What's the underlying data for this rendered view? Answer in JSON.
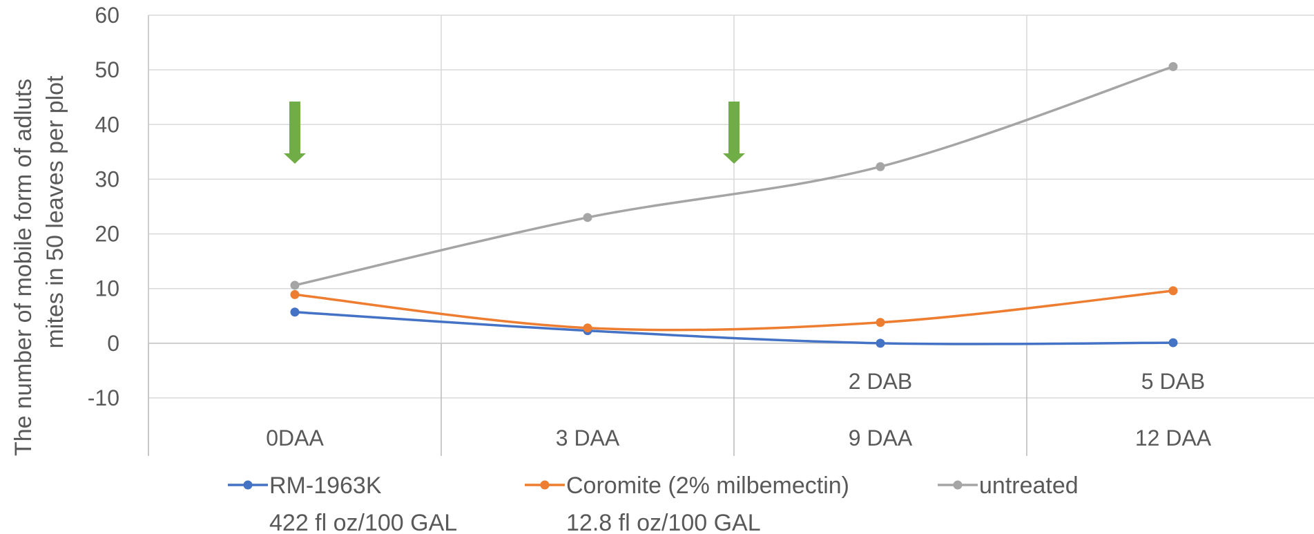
{
  "chart_data": {
    "type": "line",
    "ylabel_lines": [
      "The number of mobile form of adluts",
      "mites in 50 leaves per plot"
    ],
    "ylim": [
      -10,
      60
    ],
    "yticks": [
      -10,
      0,
      10,
      20,
      30,
      40,
      50,
      60
    ],
    "categories": [
      "0DAA",
      "3 DAA",
      "9 DAA",
      "12 DAA"
    ],
    "secondary_labels": [
      "",
      "",
      "2 DAB",
      "5 DAB"
    ],
    "grid": true,
    "smooth": true,
    "series": [
      {
        "name": "RM-1963K",
        "sub": "422 fl oz/100 GAL",
        "color": "#4472c4",
        "values": [
          5.7,
          2.3,
          0.0,
          0.1
        ]
      },
      {
        "name": "Coromite (2% milbemectin)",
        "sub": "12.8 fl oz/100 GAL",
        "color": "#ed7d31",
        "values": [
          8.9,
          2.8,
          3.8,
          9.6
        ]
      },
      {
        "name": "untreated",
        "sub": "",
        "color": "#a5a5a5",
        "values": [
          10.6,
          23.0,
          32.3,
          50.6
        ]
      }
    ],
    "arrow_color": "#70ad47",
    "arrows_at_category_positions": [
      0,
      1.5
    ],
    "legend_position": "bottom"
  }
}
